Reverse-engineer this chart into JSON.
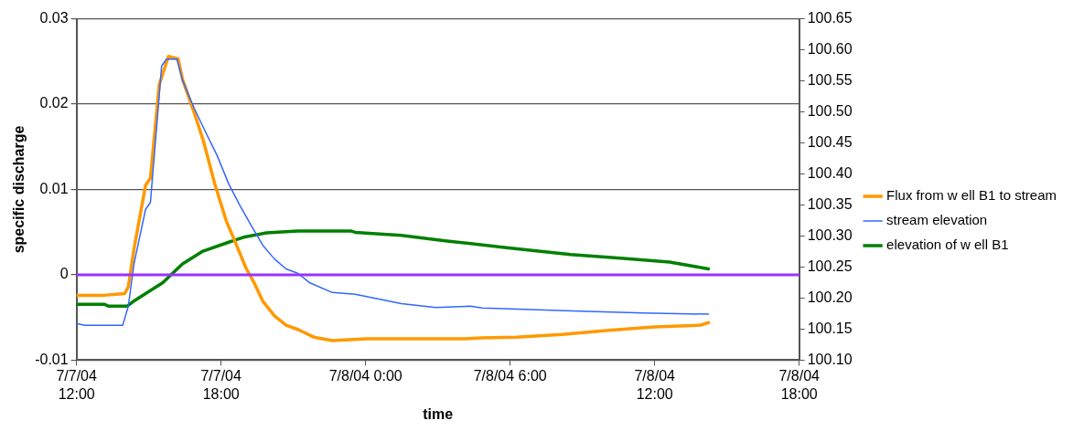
{
  "chart_data": {
    "type": "line",
    "xlabel": "time",
    "ylabel": "specific discharge",
    "legend": "right",
    "grid": "y",
    "marker": "none",
    "line_style": "solid",
    "xlim": [
      "--07-07T12:00",
      "--07-08T18:00"
    ],
    "xticks": [
      {
        "value": "--07-07T12:00",
        "label": "7/7/04\n12:00"
      },
      {
        "value": "--07-07T18:00",
        "label": "7/7/04\n18:00"
      },
      {
        "value": "--07-08T00:00",
        "label": "7/8/04 0:00"
      },
      {
        "value": "--07-08T06:00",
        "label": "7/8/04 6:00"
      },
      {
        "value": "--07-08T12:00",
        "label": "7/8/04\n12:00"
      },
      {
        "value": "--07-08T18:00",
        "label": "7/8/04\n18:00"
      }
    ],
    "ylim": [
      -0.01,
      0.03
    ],
    "yticks": [
      -0.01,
      0,
      0.01,
      0.02,
      0.03
    ],
    "y2lim": [
      100.1,
      100.65
    ],
    "y2ticks": [
      {
        "value": 100.1,
        "label": "100.10"
      },
      {
        "value": 100.15,
        "label": "100.15"
      },
      {
        "value": 100.2,
        "label": "100.20"
      },
      {
        "value": 100.25,
        "label": "100.25"
      },
      {
        "value": 100.3,
        "label": "100.30"
      },
      {
        "value": 100.35,
        "label": "100.35"
      },
      {
        "value": 100.4,
        "label": "100.40"
      },
      {
        "value": 100.45,
        "label": "100.45"
      },
      {
        "value": 100.5,
        "label": "100.50"
      },
      {
        "value": 100.55,
        "label": "100.55"
      },
      {
        "value": 100.6,
        "label": "100.60"
      },
      {
        "value": 100.65,
        "label": "100.65"
      }
    ],
    "ref_lines": [
      {
        "axis": "y",
        "value": 0,
        "color": "#9933ff"
      }
    ],
    "series": [
      {
        "name": "Flux from w ell B1 to stream",
        "color": "#ff9900",
        "axis": "y",
        "x": [
          "--07-07T12:00",
          "--07-07T13:09",
          "--07-07T14:00",
          "--07-07T14:09",
          "--07-07T14:23",
          "--07-07T14:52",
          "--07-07T15:04",
          "--07-07T15:26",
          "--07-07T15:49",
          "--07-07T16:13",
          "--07-07T16:24",
          "--07-07T16:53",
          "--07-07T17:16",
          "--07-07T17:44",
          "--07-07T18:13",
          "--07-07T18:33",
          "--07-07T19:02",
          "--07-07T19:22",
          "--07-07T19:44",
          "--07-07T20:13",
          "--07-07T20:42",
          "--07-07T21:11",
          "--07-07T21:51",
          "--07-07T22:37",
          "--07-08T00:03",
          "--07-08T04:07",
          "--07-08T04:50",
          "--07-08T06:16",
          "--07-08T08:10",
          "--07-08T10:05",
          "--07-08T12:00",
          "--07-08T13:55",
          "--07-08T14:14"
        ],
        "values": [
          -0.0024,
          -0.0024,
          -0.0022,
          -0.0014,
          0.003,
          0.0105,
          0.0113,
          0.0223,
          0.0256,
          0.0253,
          0.0229,
          0.019,
          0.0157,
          0.0107,
          0.0063,
          0.0041,
          0.0008,
          -0.0009,
          -0.0031,
          -0.0048,
          -0.0059,
          -0.0064,
          -0.0073,
          -0.0077,
          -0.0075,
          -0.0075,
          -0.0074,
          -0.0073,
          -0.007,
          -0.0065,
          -0.0061,
          -0.0059,
          -0.0056
        ]
      },
      {
        "name": "stream elevation",
        "color": "#3366ff",
        "axis": "y2",
        "x": [
          "--07-07T12:00",
          "--07-07T12:20",
          "--07-07T13:55",
          "--07-07T14:09",
          "--07-07T14:23",
          "--07-07T14:52",
          "--07-07T15:04",
          "--07-07T15:32",
          "--07-07T15:44",
          "--07-07T16:10",
          "--07-07T16:24",
          "--07-07T16:53",
          "--07-07T17:21",
          "--07-07T17:50",
          "--07-07T18:19",
          "--07-07T18:47",
          "--07-07T19:16",
          "--07-07T19:44",
          "--07-07T20:13",
          "--07-07T20:42",
          "--07-07T21:11",
          "--07-07T21:40",
          "--07-07T22:37",
          "--07-07T23:34",
          "--07-08T01:29",
          "--07-08T02:55",
          "--07-08T04:21",
          "--07-08T04:50",
          "--07-08T08:53",
          "--07-08T11:31",
          "--07-08T14:14"
        ],
        "values": [
          100.159,
          100.156,
          100.156,
          100.187,
          100.255,
          100.343,
          100.354,
          100.574,
          100.585,
          100.585,
          100.551,
          100.506,
          100.468,
          100.43,
          100.384,
          100.349,
          100.316,
          100.285,
          100.263,
          100.247,
          100.24,
          100.225,
          100.209,
          100.206,
          100.191,
          100.185,
          100.187,
          100.184,
          100.179,
          100.176,
          100.174
        ]
      },
      {
        "name": "elevation of w ell B1",
        "color": "#008000",
        "axis": "y2",
        "x": [
          "--07-07T12:00",
          "--07-07T13:09",
          "--07-07T13:20",
          "--07-07T14:06",
          "--07-07T14:20",
          "--07-07T15:35",
          "--07-07T16:24",
          "--07-07T17:13",
          "--07-07T18:19",
          "--07-07T18:56",
          "--07-07T19:53",
          "--07-07T21:11",
          "--07-07T23:25",
          "--07-07T23:34",
          "--07-08T01:29",
          "--07-08T03:23",
          "--07-08T05:56",
          "--07-08T08:31",
          "--07-08T10:43",
          "--07-08T12:37",
          "--07-08T14:14"
        ],
        "values": [
          100.19,
          100.19,
          100.187,
          100.187,
          100.194,
          100.225,
          100.255,
          100.275,
          100.29,
          100.298,
          100.305,
          100.308,
          100.308,
          100.306,
          100.301,
          100.292,
          100.281,
          100.27,
          100.264,
          100.258,
          100.247
        ]
      }
    ]
  }
}
